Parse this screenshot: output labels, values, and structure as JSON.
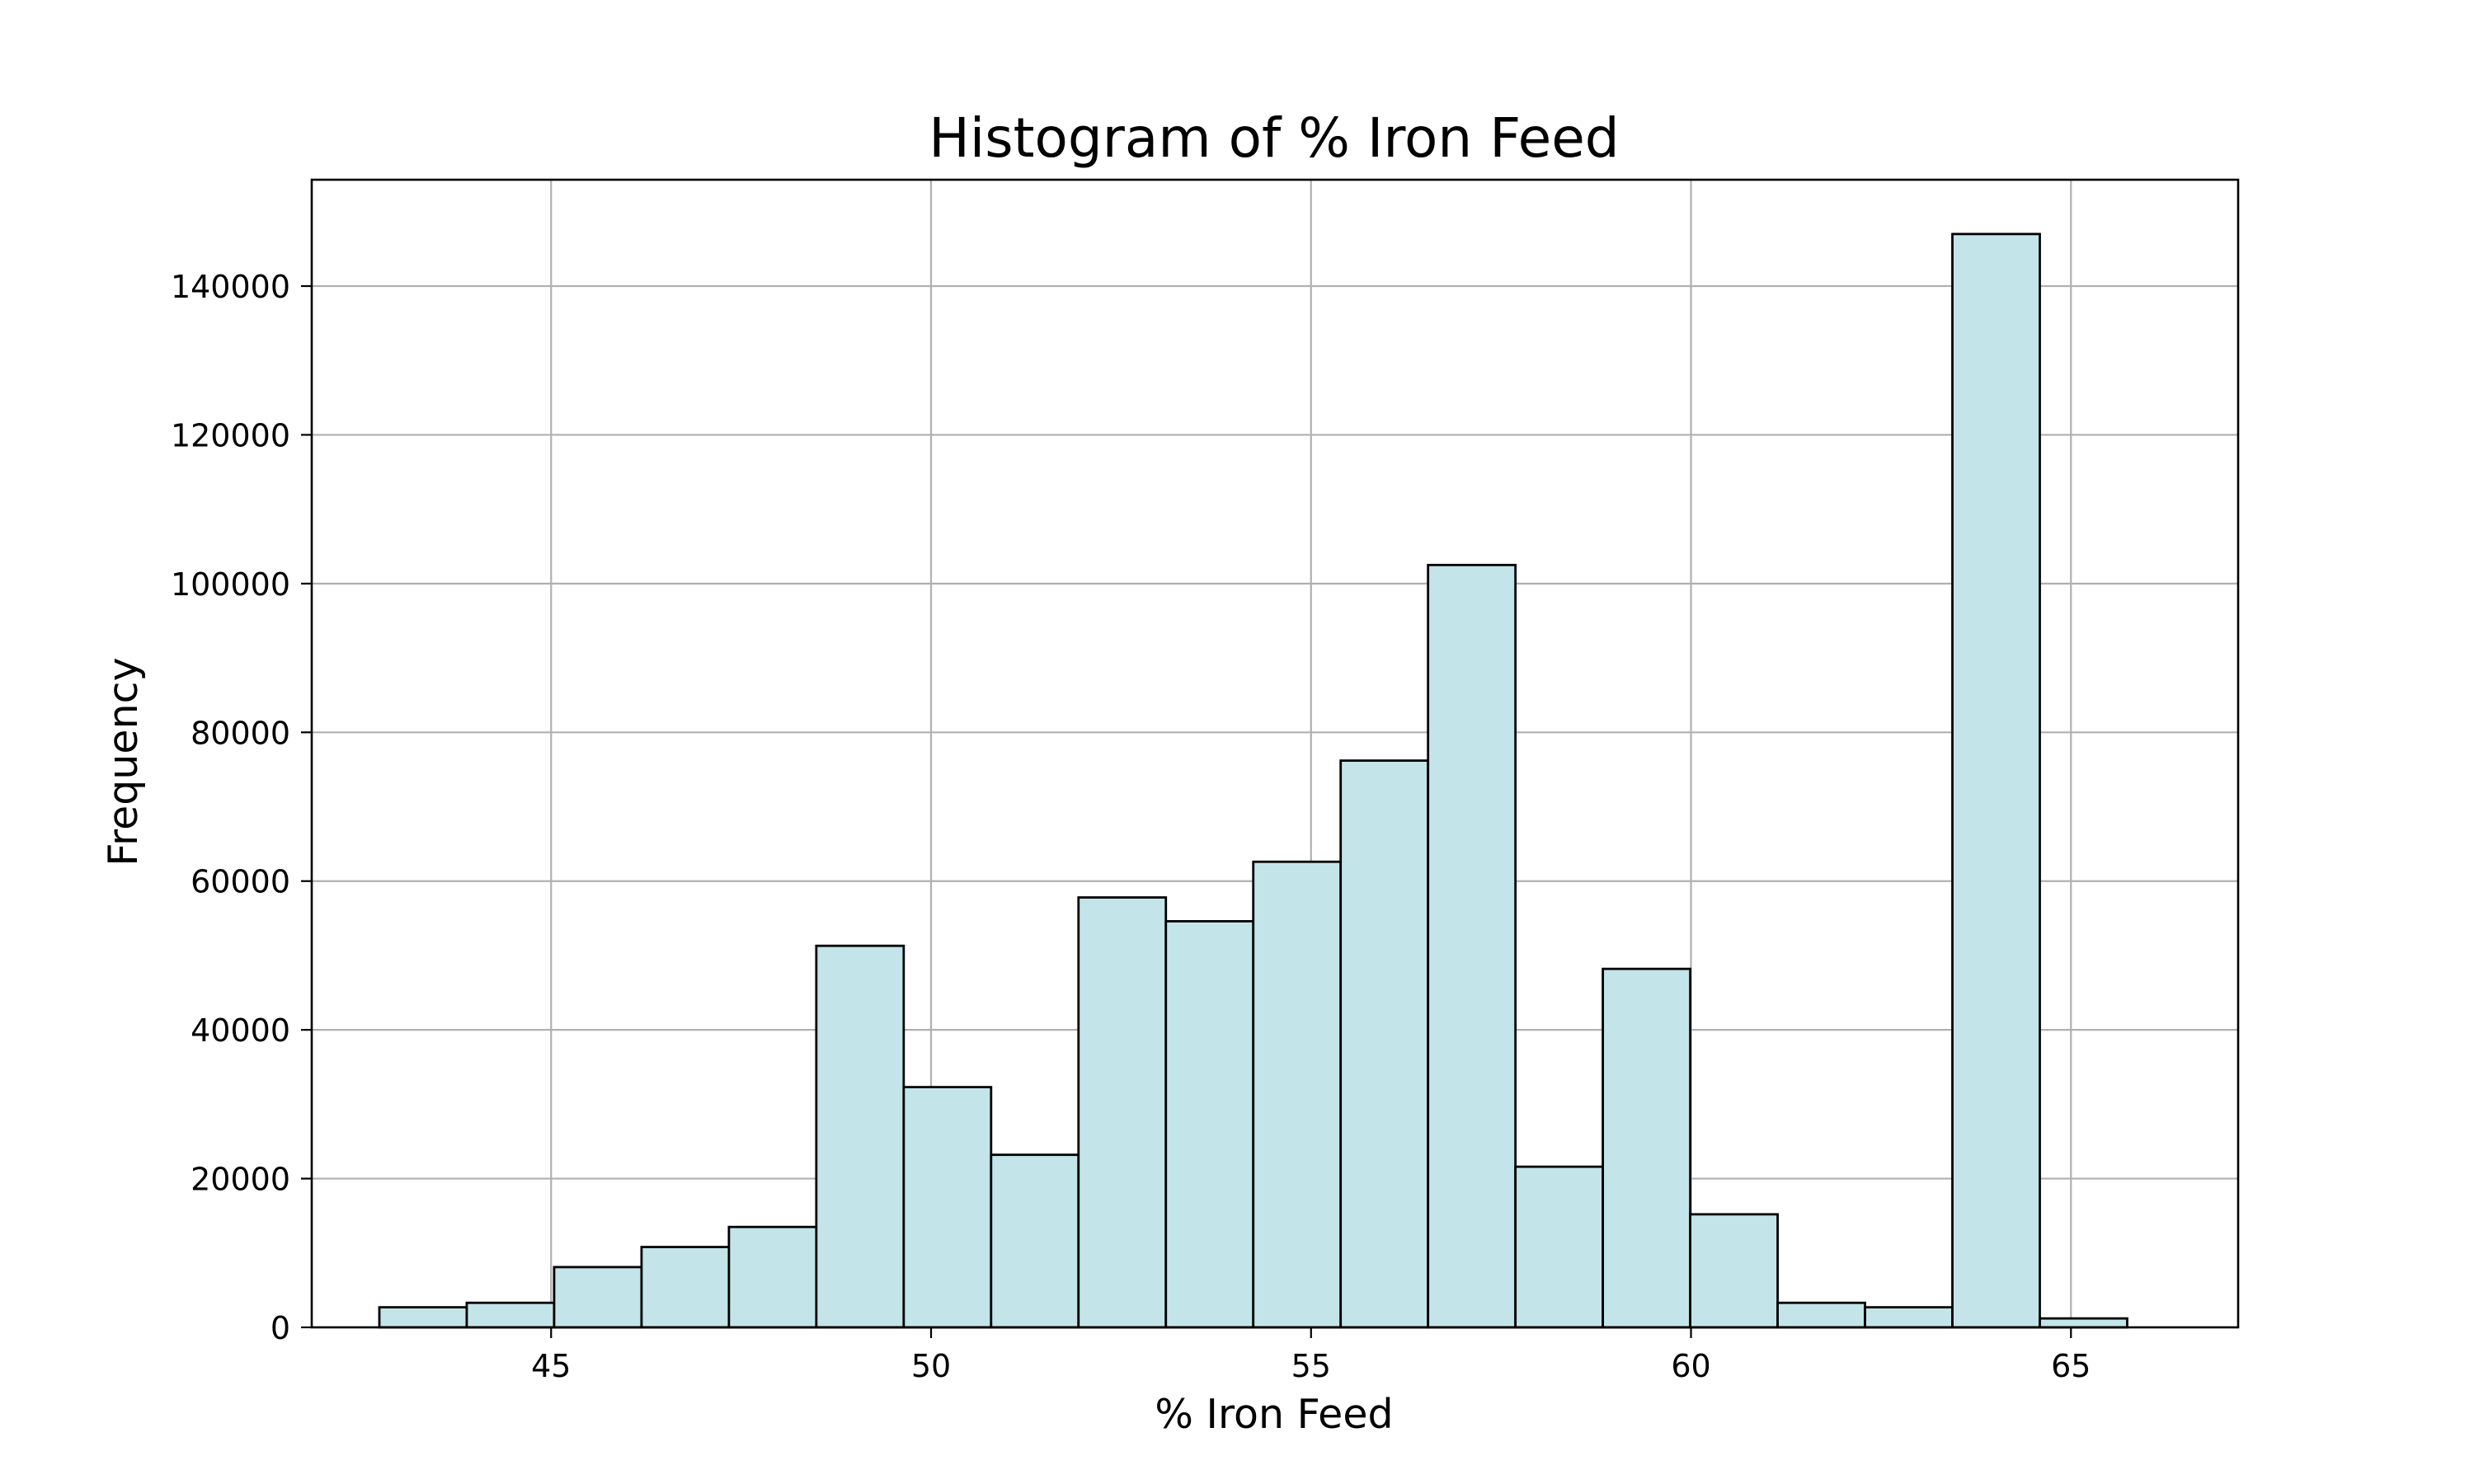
{
  "chart_data": {
    "type": "bar",
    "title": "Histogram of % Iron Feed",
    "xlabel": "% Iron Feed",
    "ylabel": "Frequency",
    "xlim": [
      41.85,
      67.2
    ],
    "ylim": [
      0,
      154300
    ],
    "xticks": [
      45,
      50,
      55,
      60,
      65
    ],
    "yticks": [
      0,
      20000,
      40000,
      60000,
      80000,
      100000,
      120000,
      140000
    ],
    "grid": true,
    "bar_color": "#c3e5ea",
    "edge_color": "#000000",
    "bins": [
      {
        "x0": 42.74,
        "x1": 43.89,
        "value": 2700
      },
      {
        "x0": 43.89,
        "x1": 45.04,
        "value": 3300
      },
      {
        "x0": 45.04,
        "x1": 46.19,
        "value": 8100
      },
      {
        "x0": 46.19,
        "x1": 47.34,
        "value": 10800
      },
      {
        "x0": 47.34,
        "x1": 48.49,
        "value": 13500
      },
      {
        "x0": 48.49,
        "x1": 49.64,
        "value": 51300
      },
      {
        "x0": 49.64,
        "x1": 50.79,
        "value": 32300
      },
      {
        "x0": 50.79,
        "x1": 51.94,
        "value": 23200
      },
      {
        "x0": 51.94,
        "x1": 53.09,
        "value": 57800
      },
      {
        "x0": 53.09,
        "x1": 54.24,
        "value": 54600
      },
      {
        "x0": 54.24,
        "x1": 55.39,
        "value": 62600
      },
      {
        "x0": 55.39,
        "x1": 56.54,
        "value": 76200
      },
      {
        "x0": 56.54,
        "x1": 57.69,
        "value": 102500
      },
      {
        "x0": 57.69,
        "x1": 58.84,
        "value": 21600
      },
      {
        "x0": 58.84,
        "x1": 59.99,
        "value": 48200
      },
      {
        "x0": 59.99,
        "x1": 61.14,
        "value": 15200
      },
      {
        "x0": 61.14,
        "x1": 62.29,
        "value": 3300
      },
      {
        "x0": 62.29,
        "x1": 63.44,
        "value": 2700
      },
      {
        "x0": 63.44,
        "x1": 64.59,
        "value": 147000
      },
      {
        "x0": 64.59,
        "x1": 65.74,
        "value": 1200
      }
    ]
  }
}
